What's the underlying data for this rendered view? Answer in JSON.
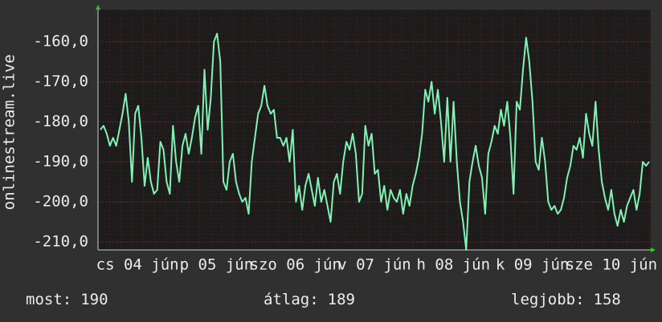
{
  "chart_data": {
    "type": "line",
    "ylabel": "onlinestream.live",
    "ylim": [
      -212,
      -152
    ],
    "yticks": [
      {
        "value": -160,
        "label": "-160,0"
      },
      {
        "value": -170,
        "label": "-170,0"
      },
      {
        "value": -180,
        "label": "-180,0"
      },
      {
        "value": -190,
        "label": "-190,0"
      },
      {
        "value": -200,
        "label": "-200,0"
      },
      {
        "value": -210,
        "label": "-210,0"
      }
    ],
    "xtick_labels": [
      "cs 04 jún",
      "p 05 jún",
      "szo 06 jún",
      "v 07 jún",
      "h 08 jún",
      "k 09 jún",
      "sze 10 jún"
    ],
    "grid": true,
    "series": [
      {
        "color": "#80f2b4",
        "values": [
          -182,
          -181,
          -183,
          -186,
          -184,
          -186,
          -182,
          -178,
          -173,
          -180,
          -195,
          -178,
          -176,
          -184,
          -196,
          -189,
          -195,
          -198,
          -197,
          -185,
          -187,
          -195,
          -198,
          -181,
          -190,
          -195,
          -186,
          -183,
          -188,
          -184,
          -179,
          -176,
          -188,
          -167,
          -182,
          -174,
          -160,
          -158,
          -165,
          -195,
          -197,
          -190,
          -188,
          -195,
          -198,
          -200,
          -199,
          -203,
          -190,
          -184,
          -178,
          -176,
          -171,
          -176,
          -178,
          -177,
          -184,
          -184,
          -186,
          -184,
          -190,
          -182,
          -200,
          -196,
          -202,
          -196,
          -193,
          -197,
          -201,
          -194,
          -200,
          -197,
          -201,
          -205,
          -195,
          -193,
          -198,
          -190,
          -185,
          -187,
          -183,
          -188,
          -200,
          -198,
          -181,
          -186,
          -183,
          -193,
          -192,
          -200,
          -196,
          -202,
          -197,
          -199,
          -200,
          -197,
          -203,
          -198,
          -201,
          -196,
          -193,
          -189,
          -183,
          -172,
          -175,
          -170,
          -178,
          -172,
          -180,
          -190,
          -174,
          -190,
          -175,
          -190,
          -200,
          -205,
          -212,
          -195,
          -190,
          -186,
          -191,
          -194,
          -203,
          -188,
          -185,
          -181,
          -183,
          -177,
          -181,
          -175,
          -184,
          -198,
          -175,
          -177,
          -167,
          -159,
          -165,
          -175,
          -190,
          -192,
          -184,
          -190,
          -200,
          -202,
          -201,
          -203,
          -202,
          -199,
          -194,
          -191,
          -186,
          -187,
          -184,
          -189,
          -178,
          -183,
          -186,
          -175,
          -187,
          -195,
          -199,
          -202,
          -197,
          -203,
          -206,
          -202,
          -205,
          -201,
          -199,
          -197,
          -202,
          -198,
          -190,
          -191,
          -190
        ]
      }
    ],
    "footer": [
      {
        "label": "most:",
        "value": 190
      },
      {
        "label": "átlag:",
        "value": 189
      },
      {
        "label": "legjobb:",
        "value": 158
      }
    ]
  }
}
